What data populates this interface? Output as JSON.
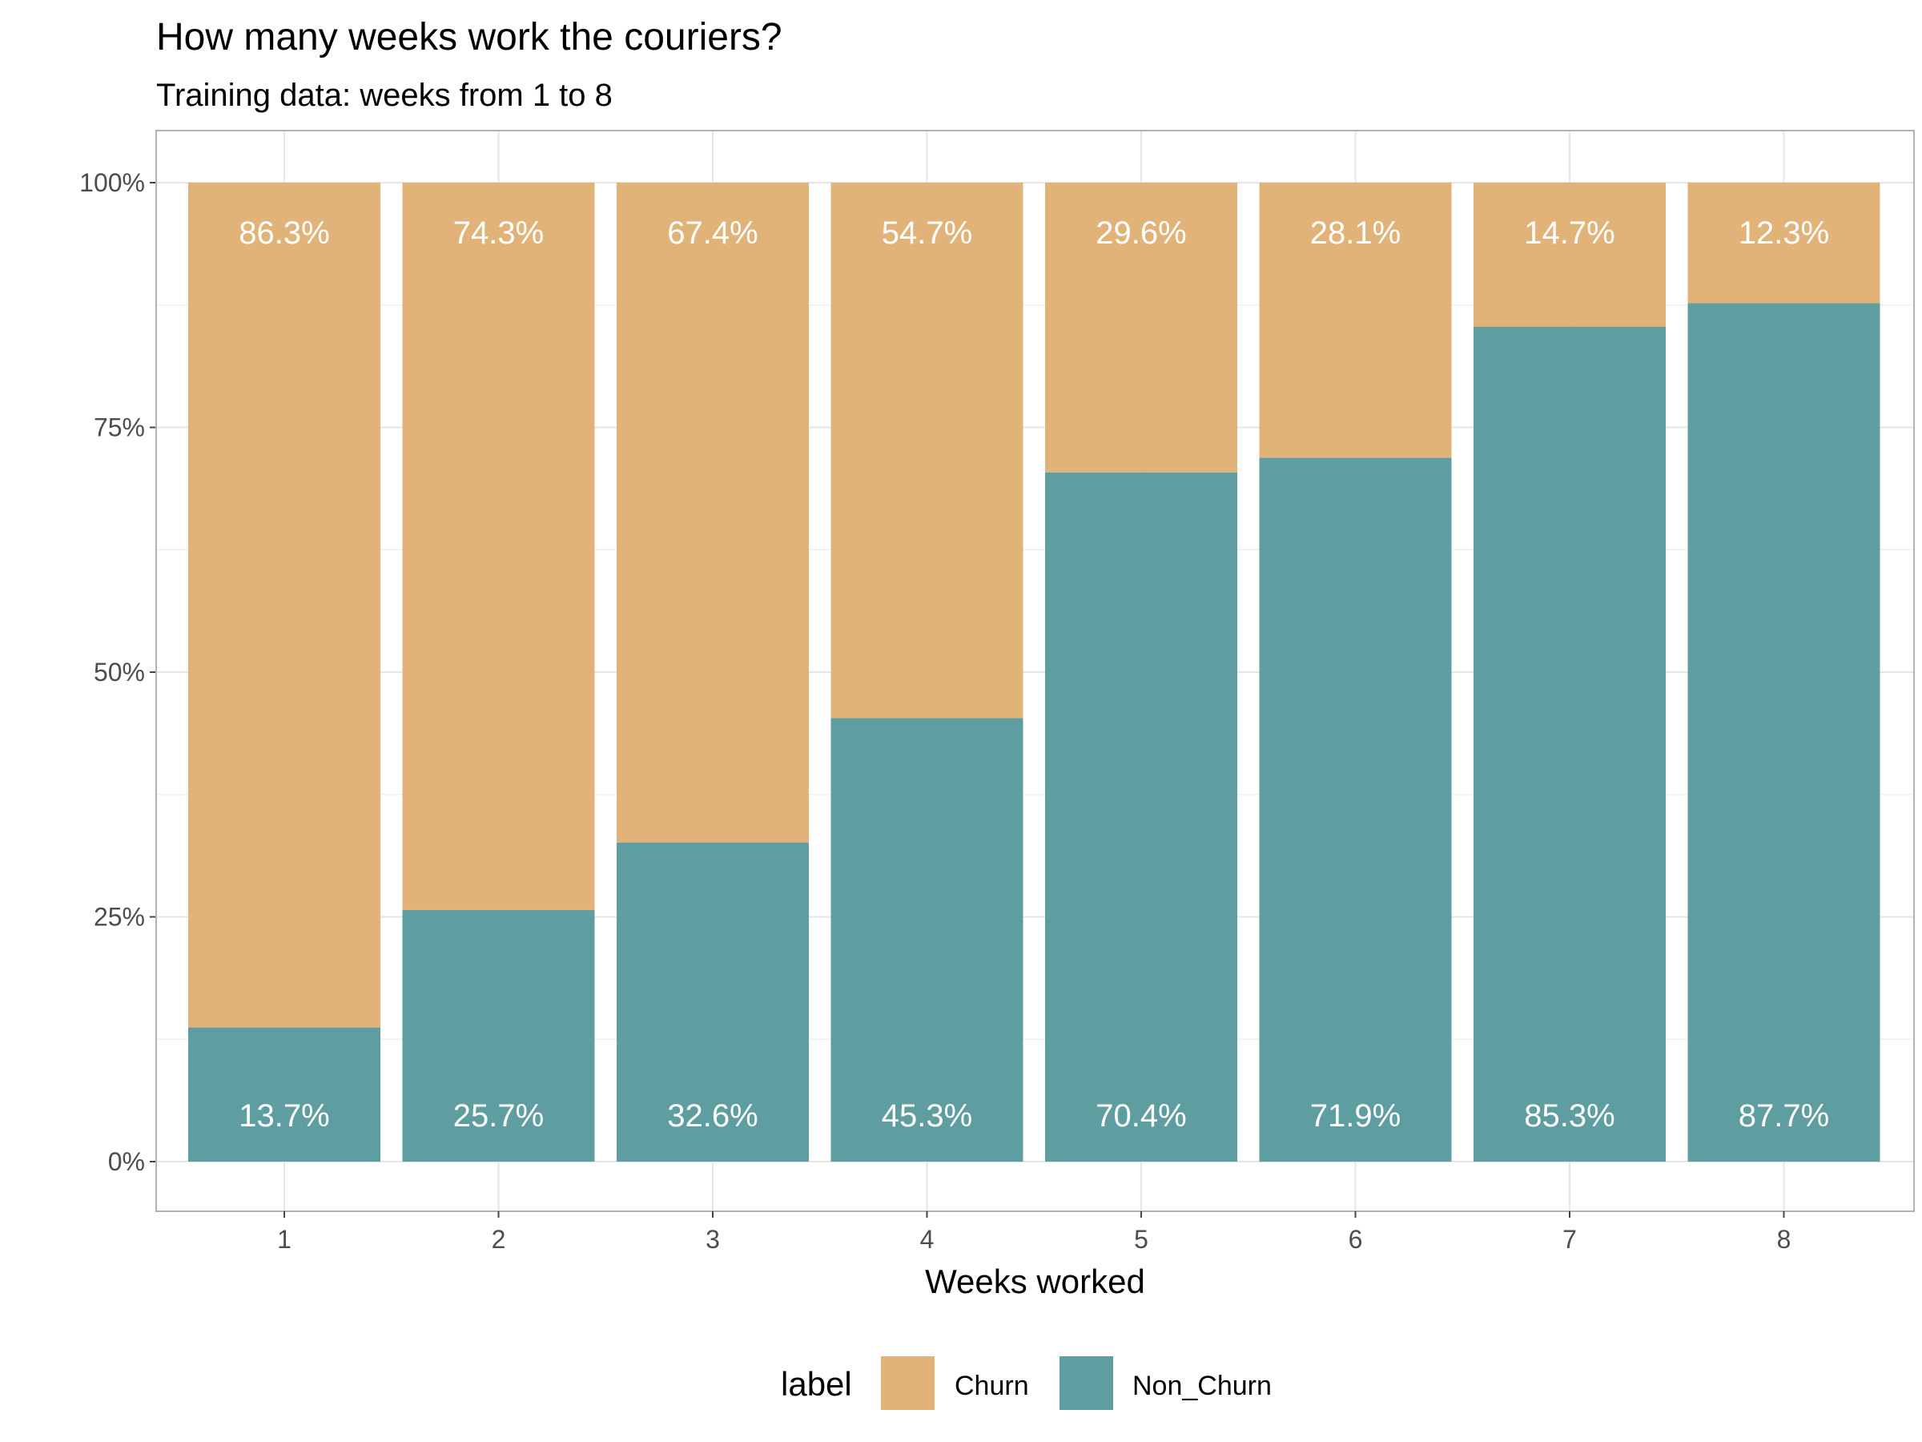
{
  "title": "How many weeks work the couriers?",
  "subtitle": "Training data: weeks from 1 to 8",
  "chart_data": {
    "type": "bar",
    "stacked": "percent",
    "title": "How many weeks work the couriers?",
    "subtitle": "Training data: weeks from 1 to 8",
    "xlabel": "Weeks worked",
    "ylabel": "",
    "categories": [
      "1",
      "2",
      "3",
      "4",
      "5",
      "6",
      "7",
      "8"
    ],
    "ylim": [
      0,
      100
    ],
    "yticks": [
      "0%",
      "25%",
      "50%",
      "75%",
      "100%"
    ],
    "ytick_values": [
      0,
      25,
      50,
      75,
      100
    ],
    "grid": true,
    "legend": {
      "title": "label",
      "position": "bottom"
    },
    "series": [
      {
        "name": "Churn",
        "color": "#E2B378",
        "values": [
          86.3,
          74.3,
          67.4,
          54.7,
          29.6,
          28.1,
          14.7,
          12.3
        ],
        "labels": [
          "86.3%",
          "74.3%",
          "67.4%",
          "54.7%",
          "29.6%",
          "28.1%",
          "14.7%",
          "12.3%"
        ]
      },
      {
        "name": "Non_Churn",
        "color": "#5F9EA0",
        "values": [
          13.7,
          25.7,
          32.6,
          45.3,
          70.4,
          71.9,
          85.3,
          87.7
        ],
        "labels": [
          "13.7%",
          "25.7%",
          "32.6%",
          "45.3%",
          "70.4%",
          "71.9%",
          "85.3%",
          "87.7%"
        ]
      }
    ]
  }
}
